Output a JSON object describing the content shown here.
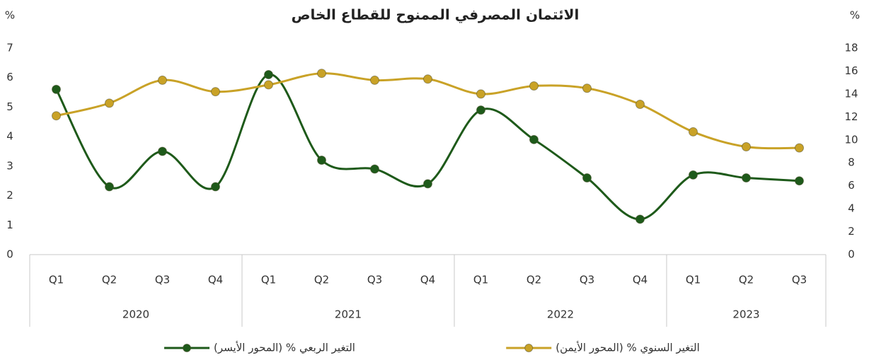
{
  "chart_data": {
    "type": "line",
    "title": "الائتمان المصرفي الممنوح للقطاع الخاص",
    "y_label": "%",
    "y2_label": "%",
    "categories": [
      "Q1",
      "Q2",
      "Q3",
      "Q4",
      "Q1",
      "Q2",
      "Q3",
      "Q4",
      "Q1",
      "Q2",
      "Q3",
      "Q4",
      "Q1",
      "Q2",
      "Q3"
    ],
    "groups": [
      {
        "label": "2020",
        "count": 4
      },
      {
        "label": "2021",
        "count": 4
      },
      {
        "label": "2022",
        "count": 4
      },
      {
        "label": "2023",
        "count": 3
      }
    ],
    "series": [
      {
        "name": "التغير الربعي %  (المحور الأيسر)",
        "color": "#1e5a1a",
        "axis": "y",
        "values": [
          5.6,
          2.3,
          3.5,
          2.3,
          6.1,
          3.2,
          2.9,
          2.4,
          4.9,
          3.9,
          2.6,
          1.2,
          2.7,
          2.6,
          2.5
        ]
      },
      {
        "name": "التغير السنوي % (المحور الأيمن)",
        "color": "#c9a227",
        "axis": "y2",
        "values": [
          12.1,
          13.2,
          15.2,
          14.2,
          14.8,
          15.8,
          15.2,
          15.3,
          14.0,
          14.7,
          14.5,
          13.1,
          10.7,
          9.4,
          9.3
        ]
      }
    ],
    "ylim": [
      0,
      7
    ],
    "yticks": [
      0,
      1,
      2,
      3,
      4,
      5,
      6,
      7
    ],
    "y2lim": [
      0,
      18
    ],
    "y2ticks": [
      0,
      2,
      4,
      6,
      8,
      10,
      12,
      14,
      16,
      18
    ],
    "grid": false,
    "legend": "bottom"
  }
}
